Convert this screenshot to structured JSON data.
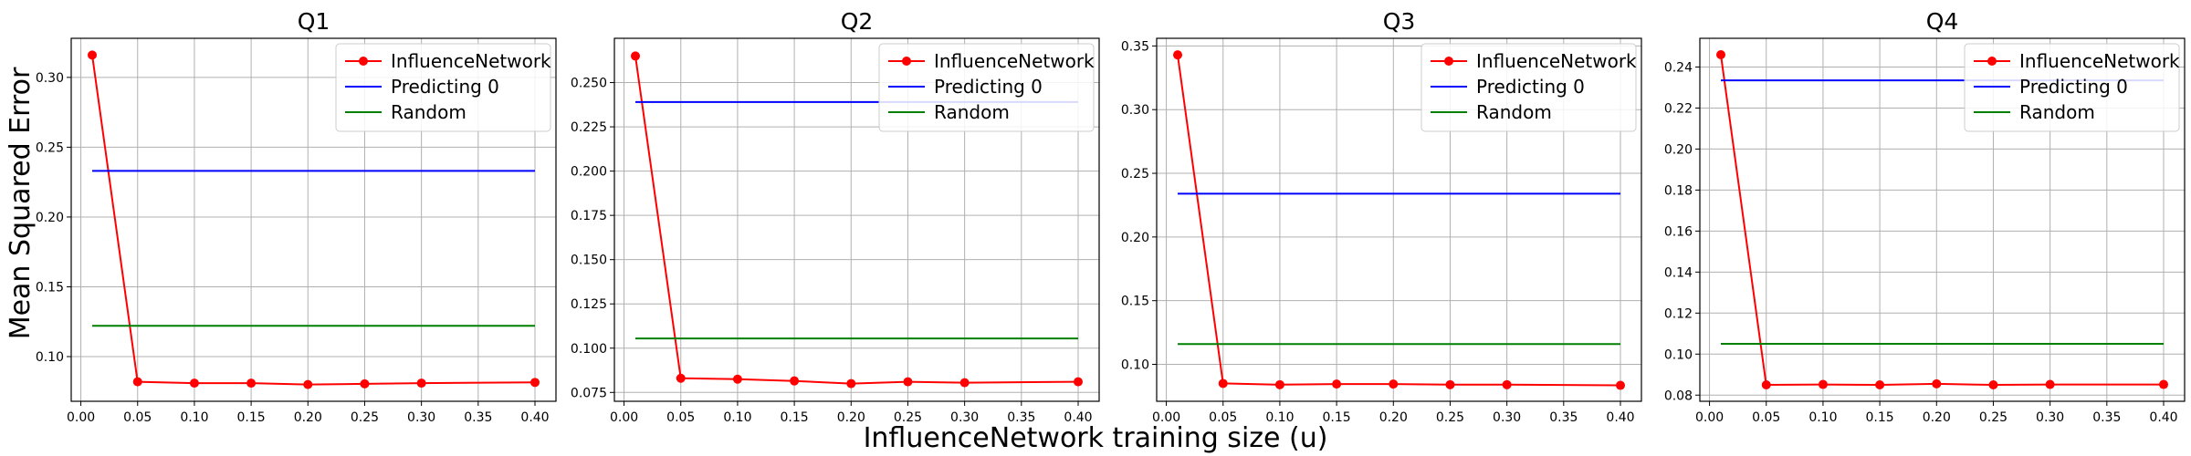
{
  "figure": {
    "xlabel": "InfluenceNetwork training size (u)",
    "ylabel": "Mean Squared Error"
  },
  "colors": {
    "InfluenceNetwork": "#ff0000",
    "Predicting 0": "#0000ff",
    "Random": "#008000",
    "grid": "#b0b0b0"
  },
  "chart_data": [
    {
      "type": "line",
      "title": "Q1",
      "x": [
        0.01,
        0.05,
        0.1,
        0.15,
        0.2,
        0.25,
        0.3,
        0.4
      ],
      "xlim": [
        -0.0085,
        0.4185
      ],
      "xticks": [
        0.0,
        0.05,
        0.1,
        0.15,
        0.2,
        0.25,
        0.3,
        0.35,
        0.4
      ],
      "xtick_labels": [
        "0.00",
        "0.05",
        "0.10",
        "0.15",
        "0.20",
        "0.25",
        "0.30",
        "0.35",
        "0.40"
      ],
      "ylim": [
        0.068,
        0.328
      ],
      "yticks": [
        0.1,
        0.15,
        0.2,
        0.25,
        0.3
      ],
      "ytick_labels": [
        "0.10",
        "0.15",
        "0.20",
        "0.25",
        "0.30"
      ],
      "grid": true,
      "legend_position": "top-right",
      "series": [
        {
          "name": "InfluenceNetwork",
          "marker": true,
          "values": [
            0.316,
            0.082,
            0.081,
            0.081,
            0.08,
            0.0805,
            0.081,
            0.0815
          ]
        },
        {
          "name": "Predicting 0",
          "marker": false,
          "values": [
            0.233,
            0.233,
            0.233,
            0.233,
            0.233,
            0.233,
            0.233,
            0.233
          ]
        },
        {
          "name": "Random",
          "marker": false,
          "values": [
            0.122,
            0.122,
            0.122,
            0.122,
            0.122,
            0.122,
            0.122,
            0.122
          ]
        }
      ]
    },
    {
      "type": "line",
      "title": "Q2",
      "x": [
        0.01,
        0.05,
        0.1,
        0.15,
        0.2,
        0.25,
        0.3,
        0.4
      ],
      "xlim": [
        -0.0085,
        0.4185
      ],
      "xticks": [
        0.0,
        0.05,
        0.1,
        0.15,
        0.2,
        0.25,
        0.3,
        0.35,
        0.4
      ],
      "xtick_labels": [
        "0.00",
        "0.05",
        "0.10",
        "0.15",
        "0.20",
        "0.25",
        "0.30",
        "0.35",
        "0.40"
      ],
      "ylim": [
        0.07,
        0.275
      ],
      "yticks": [
        0.075,
        0.1,
        0.125,
        0.15,
        0.175,
        0.2,
        0.225,
        0.25
      ],
      "ytick_labels": [
        "0.075",
        "0.100",
        "0.125",
        "0.150",
        "0.175",
        "0.200",
        "0.225",
        "0.250"
      ],
      "grid": true,
      "legend_position": "top-right",
      "series": [
        {
          "name": "InfluenceNetwork",
          "marker": true,
          "values": [
            0.265,
            0.083,
            0.0825,
            0.0815,
            0.08,
            0.081,
            0.0805,
            0.081
          ]
        },
        {
          "name": "Predicting 0",
          "marker": false,
          "values": [
            0.239,
            0.239,
            0.239,
            0.239,
            0.239,
            0.239,
            0.239,
            0.239
          ]
        },
        {
          "name": "Random",
          "marker": false,
          "values": [
            0.1055,
            0.1055,
            0.1055,
            0.1055,
            0.1055,
            0.1055,
            0.1055,
            0.1055
          ]
        }
      ]
    },
    {
      "type": "line",
      "title": "Q3",
      "x": [
        0.01,
        0.05,
        0.1,
        0.15,
        0.2,
        0.25,
        0.3,
        0.4
      ],
      "xlim": [
        -0.0085,
        0.4185
      ],
      "xticks": [
        0.0,
        0.05,
        0.1,
        0.15,
        0.2,
        0.25,
        0.3,
        0.35,
        0.4
      ],
      "xtick_labels": [
        "0.00",
        "0.05",
        "0.10",
        "0.15",
        "0.20",
        "0.25",
        "0.30",
        "0.35",
        "0.40"
      ],
      "ylim": [
        0.071,
        0.356
      ],
      "yticks": [
        0.1,
        0.15,
        0.2,
        0.25,
        0.3,
        0.35
      ],
      "ytick_labels": [
        "0.10",
        "0.15",
        "0.20",
        "0.25",
        "0.30",
        "0.35"
      ],
      "grid": true,
      "legend_position": "top-right",
      "series": [
        {
          "name": "InfluenceNetwork",
          "marker": true,
          "values": [
            0.343,
            0.085,
            0.084,
            0.0845,
            0.0845,
            0.084,
            0.084,
            0.0835
          ]
        },
        {
          "name": "Predicting 0",
          "marker": false,
          "values": [
            0.234,
            0.234,
            0.234,
            0.234,
            0.234,
            0.234,
            0.234,
            0.234
          ]
        },
        {
          "name": "Random",
          "marker": false,
          "values": [
            0.116,
            0.116,
            0.116,
            0.116,
            0.116,
            0.116,
            0.116,
            0.116
          ]
        }
      ]
    },
    {
      "type": "line",
      "title": "Q4",
      "x": [
        0.01,
        0.05,
        0.1,
        0.15,
        0.2,
        0.25,
        0.3,
        0.4
      ],
      "xlim": [
        -0.0085,
        0.4185
      ],
      "xticks": [
        0.0,
        0.05,
        0.1,
        0.15,
        0.2,
        0.25,
        0.3,
        0.35,
        0.4
      ],
      "xtick_labels": [
        "0.00",
        "0.05",
        "0.10",
        "0.15",
        "0.20",
        "0.25",
        "0.30",
        "0.35",
        "0.40"
      ],
      "ylim": [
        0.077,
        0.254
      ],
      "yticks": [
        0.08,
        0.1,
        0.12,
        0.14,
        0.16,
        0.18,
        0.2,
        0.22,
        0.24
      ],
      "ytick_labels": [
        "0.08",
        "0.10",
        "0.12",
        "0.14",
        "0.16",
        "0.18",
        "0.20",
        "0.22",
        "0.24"
      ],
      "grid": true,
      "legend_position": "top-right",
      "series": [
        {
          "name": "InfluenceNetwork",
          "marker": true,
          "values": [
            0.246,
            0.085,
            0.0852,
            0.085,
            0.0855,
            0.085,
            0.0852,
            0.0852
          ]
        },
        {
          "name": "Predicting 0",
          "marker": false,
          "values": [
            0.2335,
            0.2335,
            0.2335,
            0.2335,
            0.2335,
            0.2335,
            0.2335,
            0.2335
          ]
        },
        {
          "name": "Random",
          "marker": false,
          "values": [
            0.105,
            0.105,
            0.105,
            0.105,
            0.105,
            0.105,
            0.105,
            0.105
          ]
        }
      ]
    }
  ]
}
